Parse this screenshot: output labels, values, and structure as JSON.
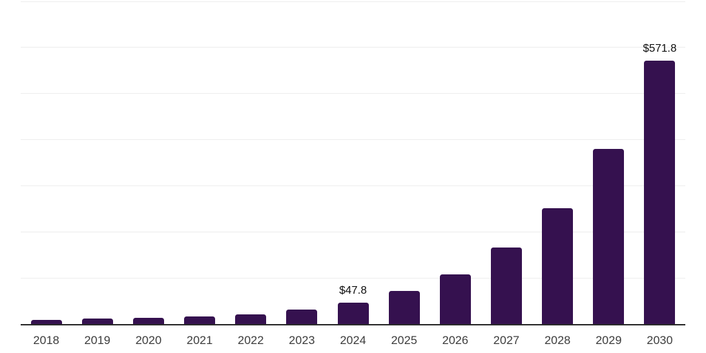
{
  "chart_data": {
    "type": "bar",
    "title": "",
    "xlabel": "",
    "ylabel": "",
    "categories": [
      "2018",
      "2019",
      "2020",
      "2021",
      "2022",
      "2023",
      "2024",
      "2025",
      "2026",
      "2027",
      "2028",
      "2029",
      "2030"
    ],
    "values": [
      9,
      12,
      13.5,
      16.5,
      22,
      31.4,
      47.8,
      72,
      109,
      166,
      252,
      380,
      571.8
    ],
    "data_labels": [
      null,
      null,
      null,
      null,
      null,
      null,
      "$47.8",
      null,
      null,
      null,
      null,
      null,
      "$571.8"
    ],
    "ylim": [
      0,
      700
    ],
    "gridline_step": 100,
    "grid": "horizontal-only",
    "legend": "none",
    "y_tick_labels_visible": false,
    "colors": {
      "bar": "#35114f",
      "gridline": "#ededed",
      "axis_line": "#2b2b2b",
      "tick_label": "#3d3d3d",
      "data_label": "#0f0f0f",
      "background": "#ffffff"
    }
  }
}
